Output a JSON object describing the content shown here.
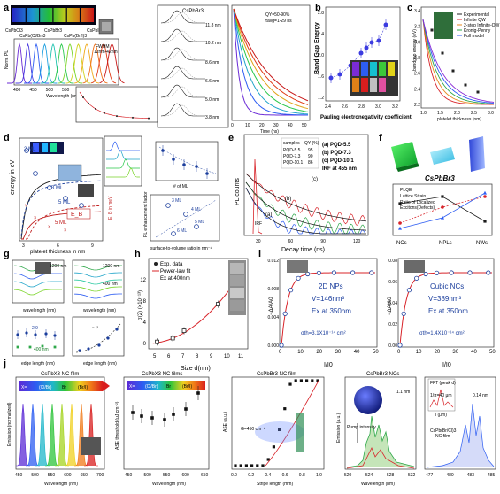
{
  "panel_labels": [
    "a",
    "b",
    "c",
    "d",
    "e",
    "f",
    "g",
    "h",
    "i",
    "j"
  ],
  "a": {
    "vial_captions": [
      "CsPbCl3",
      "CsPb(Cl/Br)3",
      "CsPbBr3",
      "CsPb(Br/I)3",
      "CsPbI3"
    ],
    "pl_ylabel": "Norm. PL",
    "pl_xlabel": "Wavelength (nm)",
    "pl_ticks": [
      "400",
      "450",
      "500",
      "550",
      "600",
      "650",
      "700"
    ],
    "fwhm_label": "FWHM",
    "fwhm_range": "12nm-42nm",
    "decay_title": "CsPbBr3",
    "decay_layers": [
      "11.8 nm",
      "10.2 nm",
      "8.6 nm",
      "6.6 nm",
      "5.0 nm",
      "3.8 nm"
    ],
    "qy_line1": "QY=50-90%",
    "qy_line2": "τavg=1-29 ns",
    "time_xlabel": "Time (ns)",
    "time_ticks": [
      "0",
      "10",
      "20",
      "30",
      "40",
      "50"
    ]
  },
  "b": {
    "ylabel": "Band Gap Energy",
    "xlabel": "Pauling electronegativity coefficient",
    "xticks": [
      "2.4",
      "2.6",
      "2.8",
      "3.0",
      "3.2"
    ],
    "yticks": [
      "1.2",
      "1.6",
      "2.0",
      "2.4",
      "2.8"
    ]
  },
  "c": {
    "legend": [
      "Experimental",
      "Infinite QW",
      "2-step Infinite-QW",
      "Kronig-Penny",
      "Full model"
    ],
    "ylabel": "bandgap energy (eV)",
    "xlabel": "platelet thickness (nm)",
    "xticks": [
      "1.0",
      "1.5",
      "2.0",
      "2.5",
      "3.0"
    ],
    "yticks": [
      "2.2",
      "2.4",
      "2.6",
      "2.8",
      "3.0",
      "3.2",
      "3.4"
    ]
  },
  "d": {
    "ylabel": "energy in eV",
    "xlabel": "platelet thickness in nm",
    "xticks": [
      "3",
      "6",
      "9"
    ],
    "ml_labels": [
      "2 ML",
      "3 ML",
      "5 ML",
      "5 ML"
    ],
    "eb_label": "E_B",
    "right_ylabel": "E_B in meV",
    "inset_xlabel": "# of ML",
    "inset2_xlabel": "surface-to-volume ratio in nm⁻¹",
    "inset2_ylabel": "PL enhancement factor",
    "inset2_labels": [
      "3 ML",
      "4 ML",
      "5 ML",
      "6 ML"
    ]
  },
  "e": {
    "ylabel": "PL counts",
    "xlabel": "Decay time (ns)",
    "xticks": [
      "30",
      "60",
      "90",
      "120"
    ],
    "table_header": [
      "samples",
      "QY (%)"
    ],
    "table_rows": [
      [
        "PQD-5.5",
        "95"
      ],
      [
        "PQD-7.3",
        "90"
      ],
      [
        "PQD-10.1",
        "86"
      ]
    ],
    "legend": [
      "(a) PQD-5.5",
      "(b) PQD-7.3",
      "(c) PQD-10.1",
      "IRF at 455 nm"
    ],
    "curve_labels": [
      "(a)",
      "(b)",
      "(c)",
      "IRF"
    ]
  },
  "f": {
    "title": "CsPbBr3",
    "legend": [
      "PLQE",
      "Lattice Strain",
      "Ratio of Localized",
      "Excitons(Defects)"
    ],
    "xcats": [
      "NCs",
      "NPLs",
      "NWs"
    ]
  },
  "g": {
    "tl_tag": "1200 nm",
    "tr_tag": "1200 nm",
    "tr_tag2": "400 nm",
    "xlabel": "wavelength (nm)",
    "bl_xlabel": "edge length (nm)",
    "br_xlabel": "edge length (nm)",
    "bl_note": "2.9",
    "bl_note2": "400 nm",
    "br_note": "~ l²"
  },
  "h": {
    "legend": [
      "Exp. data",
      "Power-law fit",
      "Ex at 400nm"
    ],
    "ylabel": "σ(2) (×10⁻¹³)",
    "xlabel": "Size d(nm)",
    "xticks": [
      "5",
      "6",
      "7",
      "8",
      "9",
      "10",
      "11"
    ],
    "yticks": [
      "0",
      "4",
      "8",
      "12"
    ],
    "points": [
      {
        "x": 5.1,
        "y": 0.3
      },
      {
        "x": 6.2,
        "y": 1.0
      },
      {
        "x": 7.0,
        "y": 2.4
      },
      {
        "x": 9.4,
        "y": 7.4
      },
      {
        "x": 11.0,
        "y": 13.0
      }
    ]
  },
  "i": {
    "left": {
      "title": "2D NPs",
      "v": "V=146nm³",
      "ex": "Ex at 350nm",
      "sigma": "σth=3.1X10⁻¹⁴ cm²",
      "xlabel": "I/I0",
      "ylabel": "−ΔA/A0",
      "xticks": [
        "0",
        "10",
        "20",
        "30",
        "40",
        "50"
      ],
      "yticks": [
        "0.000",
        "0.004",
        "0.008",
        "0.012"
      ]
    },
    "right": {
      "title": "Cubic NCs",
      "v": "V=389nm³",
      "ex": "Ex at 350nm",
      "sigma": "σth=1.4X10⁻¹⁴ cm²",
      "xlabel": "I/I0",
      "ylabel": "−ΔA/A0",
      "xticks": [
        "0",
        "10",
        "20",
        "30",
        "40",
        "50"
      ],
      "yticks": [
        "0.00",
        "0.02",
        "0.04",
        "0.06",
        "0.08"
      ]
    }
  },
  "j": {
    "p1_title": "CsPbX3 NC film",
    "p1_arrow": [
      "X=",
      "(Cl/Br)",
      "Br",
      "(Br/I)"
    ],
    "p1_ylabel": "Emission (normalized)",
    "p1_xlabel": "Wavelength (nm)",
    "p1_xticks": [
      "450",
      "500",
      "550",
      "600",
      "650",
      "700"
    ],
    "p2_title": "CsPbX3 NC films",
    "p2_arrow": [
      "X=",
      "(Cl/Br)",
      "Br",
      "(Br/I)"
    ],
    "p2_ylabel": "ASE threshold (μJ cm⁻²)",
    "p2_xlabel": "Wavelength (nm)",
    "p2_xticks": [
      "450",
      "500",
      "550",
      "600",
      "650"
    ],
    "p3_title": "CsPbBr3 NC film",
    "p3_note": "G=450 cm⁻¹",
    "p3_ylabel": "ASE (a.u.)",
    "p3_xlabel": "Stripe length (mm)",
    "p3_xticks": [
      "0.0",
      "0.2",
      "0.4",
      "0.6",
      "0.8",
      "1.0"
    ],
    "p4_title": "CsPbBr3 NCs",
    "p4_pump": "Pump intensity",
    "p4_ylabel": "Emission (a.u.)",
    "p4_xlabel": "Wavelength (nm)",
    "p4_xticks": [
      "520",
      "524",
      "528",
      "532"
    ],
    "p4_tag": "1.1 nm",
    "p5_inset_title": "FFT (peak d)",
    "p5_inset_note": "1/π=40 μm",
    "p5_inset_x": "l (μm)",
    "p5_tag": "0.14 nm",
    "p5_label": "CsPb(Br/Cl)3",
    "p5_label2": "NC film",
    "p5_xticks": [
      "477",
      "480",
      "483",
      "485"
    ]
  }
}
